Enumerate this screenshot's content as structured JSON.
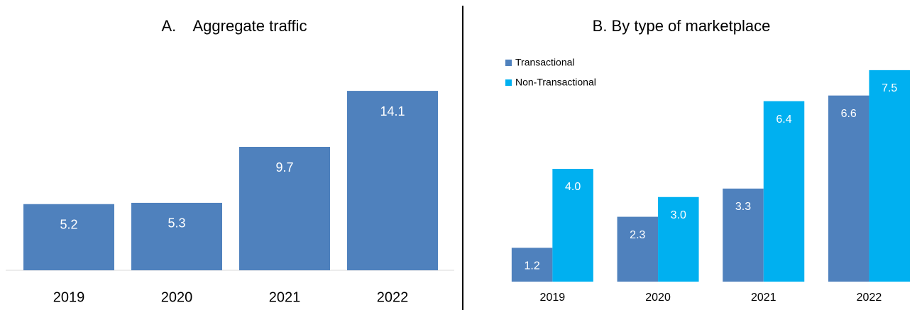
{
  "chart_data": [
    {
      "type": "bar",
      "title": "A.    Aggregate traffic",
      "categories": [
        "2019",
        "2020",
        "2021",
        "2022"
      ],
      "values": [
        5.2,
        5.3,
        9.7,
        14.1
      ],
      "value_labels": [
        "5.2",
        "5.3",
        "9.7",
        "14.1"
      ],
      "color": "#4f81bd",
      "ylim": [
        0,
        16
      ],
      "grid": false
    },
    {
      "type": "grouped_bar",
      "title": "B. By type of marketplace",
      "categories": [
        "2019",
        "2020",
        "2021",
        "2022"
      ],
      "series": [
        {
          "name": "Transactional",
          "color": "#4f81bd",
          "values": [
            1.2,
            2.3,
            3.3,
            6.6
          ],
          "value_labels": [
            "1.2",
            "2.3",
            "3.3",
            "6.6"
          ]
        },
        {
          "name": "Non-Transactional",
          "color": "#00b0f0",
          "values": [
            4.0,
            3.0,
            6.4,
            7.5
          ],
          "value_labels": [
            "4.0",
            "3.0",
            "6.4",
            "7.5"
          ]
        }
      ],
      "ylim": [
        0,
        8
      ],
      "legend": "top-left",
      "grid": false
    }
  ]
}
